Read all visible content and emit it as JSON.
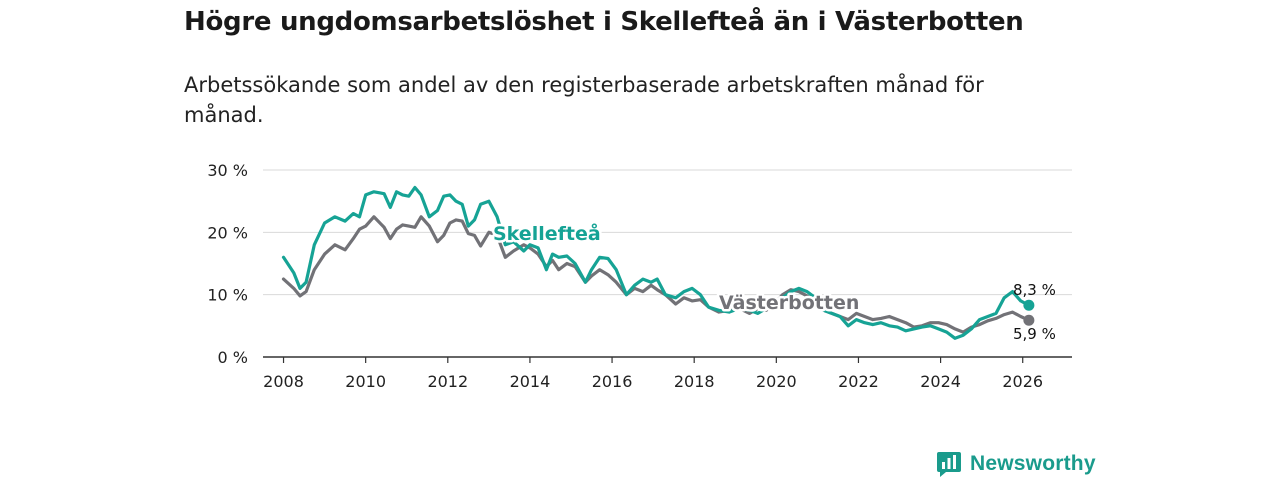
{
  "header": {
    "title": "Högre ungdomsarbetslöshet i Skellefteå än i Västerbotten",
    "subtitle": "Arbetssökande som andel av den registerbaserade arbetskraften månad för månad."
  },
  "brand": {
    "name": "Newsworthy"
  },
  "chart_data": {
    "type": "line",
    "title": "Högre ungdomsarbetslöshet i Skellefteå än i Västerbotten",
    "subtitle": "Arbetssökande som andel av den registerbaserade arbetskraften månad för månad.",
    "xlabel": "",
    "ylabel": "",
    "xlim": [
      2007.5,
      2027.2
    ],
    "ylim": [
      0,
      30
    ],
    "grid": true,
    "x_ticks": [
      2008,
      2010,
      2012,
      2014,
      2016,
      2018,
      2020,
      2022,
      2024,
      2026
    ],
    "x_tick_labels": [
      "2008",
      "2010",
      "2012",
      "2014",
      "2016",
      "2018",
      "2020",
      "2022",
      "2024",
      "2026"
    ],
    "y_ticks": [
      0,
      10,
      20,
      30
    ],
    "y_tick_labels": [
      "0 %",
      "10 %",
      "20 %",
      "30 %"
    ],
    "series": [
      {
        "name": "Västerbotten",
        "label": "Västerbotten",
        "color": "#727277",
        "end_label": "5,9 %",
        "x": [
          2008.0,
          2008.25,
          2008.4,
          2008.55,
          2008.75,
          2009.0,
          2009.25,
          2009.5,
          2009.7,
          2009.85,
          2010.0,
          2010.2,
          2010.45,
          2010.6,
          2010.75,
          2010.9,
          2011.05,
          2011.2,
          2011.35,
          2011.55,
          2011.75,
          2011.9,
          2012.05,
          2012.2,
          2012.35,
          2012.5,
          2012.65,
          2012.8,
          2013.0,
          2013.2,
          2013.4,
          2013.6,
          2013.85,
          2014.0,
          2014.2,
          2014.4,
          2014.55,
          2014.7,
          2014.9,
          2015.1,
          2015.35,
          2015.5,
          2015.7,
          2015.9,
          2016.1,
          2016.35,
          2016.55,
          2016.75,
          2016.95,
          2017.1,
          2017.3,
          2017.55,
          2017.75,
          2017.95,
          2018.15,
          2018.35,
          2018.6,
          2018.85,
          2019.1,
          2019.35,
          2019.55,
          2019.75,
          2019.95,
          2020.15,
          2020.35,
          2020.55,
          2020.75,
          2020.95,
          2021.15,
          2021.35,
          2021.55,
          2021.75,
          2021.95,
          2022.15,
          2022.35,
          2022.55,
          2022.75,
          2022.95,
          2023.15,
          2023.35,
          2023.55,
          2023.75,
          2023.95,
          2024.15,
          2024.35,
          2024.55,
          2024.75,
          2024.95,
          2025.15,
          2025.35,
          2025.55,
          2025.75,
          2025.95,
          2026.15
        ],
        "values": [
          12.5,
          11.0,
          9.8,
          10.5,
          14.0,
          16.5,
          18.0,
          17.2,
          19.0,
          20.5,
          21.0,
          22.5,
          20.8,
          19.0,
          20.5,
          21.2,
          21.0,
          20.8,
          22.5,
          21.0,
          18.5,
          19.5,
          21.5,
          22.0,
          21.8,
          19.8,
          19.5,
          17.8,
          20.0,
          19.5,
          16.0,
          17.0,
          18.0,
          17.5,
          16.5,
          14.5,
          15.5,
          14.0,
          15.0,
          14.5,
          12.0,
          13.0,
          14.0,
          13.2,
          12.0,
          10.0,
          11.0,
          10.5,
          11.5,
          10.8,
          10.0,
          8.5,
          9.5,
          9.0,
          9.2,
          8.0,
          7.2,
          7.5,
          7.8,
          7.0,
          7.8,
          7.5,
          8.5,
          10.0,
          10.8,
          10.5,
          9.8,
          9.0,
          7.5,
          7.0,
          6.5,
          6.0,
          7.0,
          6.5,
          6.0,
          6.2,
          6.5,
          6.0,
          5.5,
          4.8,
          5.0,
          5.5,
          5.5,
          5.2,
          4.5,
          4.0,
          4.8,
          5.2,
          5.8,
          6.2,
          6.8,
          7.2,
          6.5,
          5.9
        ]
      },
      {
        "name": "Skellefteå",
        "label": "Skellefteå",
        "color": "#16a395",
        "end_label": "8,3 %",
        "x": [
          2008.0,
          2008.25,
          2008.4,
          2008.55,
          2008.75,
          2009.0,
          2009.25,
          2009.5,
          2009.7,
          2009.85,
          2010.0,
          2010.2,
          2010.45,
          2010.6,
          2010.75,
          2010.9,
          2011.05,
          2011.2,
          2011.35,
          2011.55,
          2011.75,
          2011.9,
          2012.05,
          2012.2,
          2012.35,
          2012.5,
          2012.65,
          2012.8,
          2013.0,
          2013.2,
          2013.4,
          2013.6,
          2013.85,
          2014.0,
          2014.2,
          2014.4,
          2014.55,
          2014.7,
          2014.9,
          2015.1,
          2015.35,
          2015.5,
          2015.7,
          2015.9,
          2016.1,
          2016.35,
          2016.55,
          2016.75,
          2016.95,
          2017.1,
          2017.3,
          2017.55,
          2017.75,
          2017.95,
          2018.15,
          2018.35,
          2018.6,
          2018.85,
          2019.1,
          2019.35,
          2019.55,
          2019.75,
          2019.95,
          2020.15,
          2020.35,
          2020.55,
          2020.75,
          2020.95,
          2021.15,
          2021.35,
          2021.55,
          2021.75,
          2021.95,
          2022.15,
          2022.35,
          2022.55,
          2022.75,
          2022.95,
          2023.15,
          2023.35,
          2023.55,
          2023.75,
          2023.95,
          2024.15,
          2024.35,
          2024.55,
          2024.75,
          2024.95,
          2025.15,
          2025.35,
          2025.55,
          2025.75,
          2025.95,
          2026.15
        ],
        "values": [
          16.0,
          13.5,
          11.0,
          12.0,
          18.0,
          21.5,
          22.5,
          21.8,
          23.0,
          22.5,
          26.0,
          26.5,
          26.2,
          24.0,
          26.5,
          26.0,
          25.8,
          27.2,
          26.0,
          22.5,
          23.5,
          25.8,
          26.0,
          25.0,
          24.5,
          21.0,
          22.0,
          24.5,
          25.0,
          22.5,
          18.0,
          18.5,
          17.0,
          18.0,
          17.5,
          14.0,
          16.5,
          16.0,
          16.2,
          15.0,
          12.0,
          14.0,
          16.0,
          15.8,
          14.0,
          10.0,
          11.5,
          12.5,
          12.0,
          12.5,
          10.0,
          9.5,
          10.5,
          11.0,
          10.0,
          8.0,
          7.5,
          7.2,
          7.8,
          7.5,
          7.0,
          7.8,
          8.0,
          9.5,
          10.5,
          11.0,
          10.5,
          9.5,
          7.5,
          7.0,
          6.5,
          5.0,
          6.0,
          5.5,
          5.2,
          5.5,
          5.0,
          4.8,
          4.2,
          4.5,
          4.8,
          5.0,
          4.5,
          4.0,
          3.0,
          3.5,
          4.5,
          6.0,
          6.5,
          7.0,
          9.5,
          10.5,
          9.0,
          8.3
        ]
      }
    ]
  }
}
